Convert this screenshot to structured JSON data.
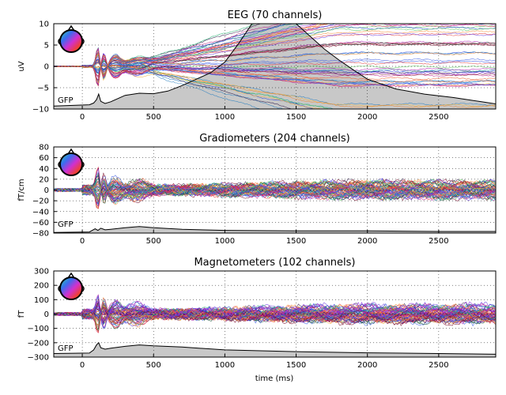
{
  "chart_data": [
    {
      "type": "line",
      "title": "EEG (70 channels)",
      "ylabel": "uV",
      "xlim": [
        -200,
        2900
      ],
      "ylim": [
        -10,
        10
      ],
      "xticks": [
        0,
        500,
        1000,
        1500,
        2000,
        2500
      ],
      "yticks": [
        -10,
        -5,
        0,
        5,
        10
      ],
      "grid": true,
      "gfp_label": "GFP",
      "series_count": 70,
      "gfp": {
        "x": [
          -200,
          50,
          80,
          100,
          115,
          130,
          160,
          200,
          300,
          400,
          500,
          600,
          700,
          800,
          900,
          1000,
          1100,
          1200,
          1300,
          1400,
          1500,
          1600,
          1700,
          1800,
          1900,
          2000,
          2200,
          2400,
          2600,
          2800,
          2900
        ],
        "y": [
          -9.3,
          -9.0,
          -8.6,
          -7.8,
          -6.5,
          -8.2,
          -8.7,
          -8.3,
          -6.8,
          -6.3,
          -6.4,
          -5.8,
          -4.5,
          -3.0,
          -1.5,
          1.0,
          5.5,
          10.5,
          10.5,
          10.5,
          10.0,
          7.0,
          4.0,
          1.5,
          -0.8,
          -3.0,
          -5.3,
          -6.5,
          -7.3,
          -8.3,
          -8.8
        ]
      }
    },
    {
      "type": "line",
      "title": "Gradiometers (204 channels)",
      "ylabel": "fT/cm",
      "xlim": [
        -200,
        2900
      ],
      "ylim": [
        -80,
        80
      ],
      "xticks": [
        0,
        500,
        1000,
        1500,
        2000,
        2500
      ],
      "yticks": [
        -80,
        -60,
        -40,
        -20,
        0,
        20,
        40,
        60,
        80
      ],
      "grid": true,
      "gfp_label": "GFP",
      "series_count": 204,
      "gfp": {
        "x": [
          -200,
          50,
          90,
          110,
          130,
          160,
          200,
          300,
          400,
          500,
          700,
          1000,
          1500,
          2000,
          2500,
          2900
        ],
        "y": [
          -79,
          -78,
          -72,
          -75,
          -71,
          -74,
          -73,
          -70,
          -68,
          -70,
          -73,
          -75,
          -76,
          -76,
          -77,
          -77
        ]
      }
    },
    {
      "type": "line",
      "title": "Magnetometers (102 channels)",
      "ylabel": "fT",
      "xlabel": "time (ms)",
      "xlim": [
        -200,
        2900
      ],
      "ylim": [
        -300,
        300
      ],
      "xticks": [
        0,
        500,
        1000,
        1500,
        2000,
        2500
      ],
      "yticks": [
        -300,
        -200,
        -100,
        0,
        100,
        200,
        300
      ],
      "grid": true,
      "gfp_label": "GFP",
      "series_count": 102,
      "gfp": {
        "x": [
          -200,
          50,
          80,
          100,
          115,
          130,
          160,
          200,
          300,
          400,
          500,
          700,
          1000,
          1500,
          2000,
          2500,
          2900
        ],
        "y": [
          -275,
          -272,
          -250,
          -215,
          -200,
          -235,
          -245,
          -238,
          -225,
          -215,
          -222,
          -230,
          -250,
          -262,
          -270,
          -275,
          -280
        ]
      }
    }
  ],
  "colors": {
    "gfp_fill": "#c8c8c8",
    "gfp_line": "#000000",
    "grid": "#000000",
    "palette": [
      "#1f3fd8",
      "#3a5ce6",
      "#6a3ce0",
      "#8a2be2",
      "#b01fb0",
      "#c0208a",
      "#d8275a",
      "#e23c3c",
      "#ef5a2a",
      "#f48a30",
      "#f2b33a",
      "#5cc85c",
      "#22b070",
      "#20a0a0",
      "#2a80c0",
      "#7a0e2e",
      "#2e1a4a",
      "#0e4d2e"
    ]
  }
}
